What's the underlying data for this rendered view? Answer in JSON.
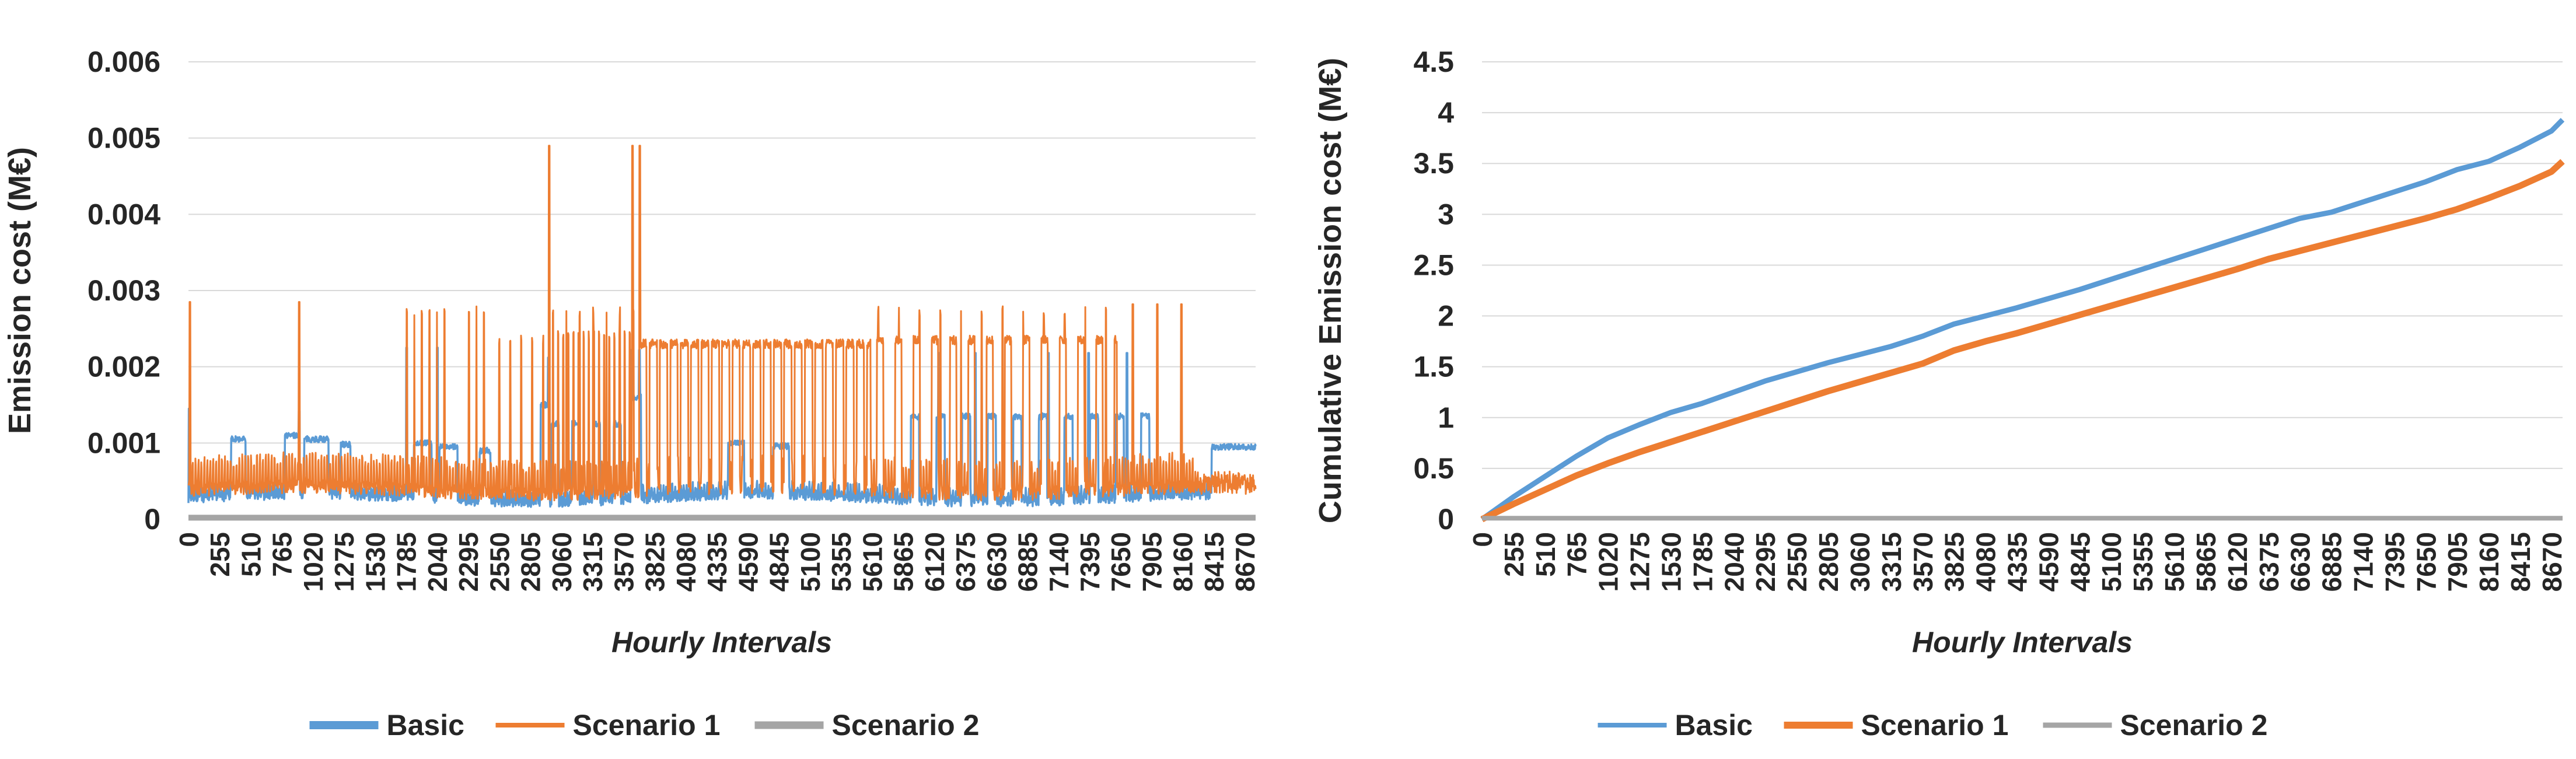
{
  "figure": {
    "background": "#ffffff",
    "gridline_color": "#D9D9D9",
    "axis_line_color": "#BFBFBF",
    "text_color": "#262626"
  },
  "chart_data": [
    {
      "id": "hourly-emission-cost",
      "type": "line",
      "title": "",
      "ylabel": "Emission cost (M€)",
      "xlabel": "Hourly Intervals",
      "ylim": [
        0,
        0.006
      ],
      "xlim": [
        0,
        8760
      ],
      "grid": "horizontal",
      "legend_position": "bottom",
      "y_ticks": [
        "0",
        "0.001",
        "0.002",
        "0.003",
        "0.004",
        "0.005",
        "0.006"
      ],
      "y_tick_values": [
        0,
        0.001,
        0.002,
        0.003,
        0.004,
        0.005,
        0.006
      ],
      "x_ticks": [
        0,
        255,
        510,
        765,
        1020,
        1275,
        1530,
        1785,
        2040,
        2295,
        2550,
        2805,
        3060,
        3315,
        3570,
        3825,
        4080,
        4335,
        4590,
        4845,
        5100,
        5355,
        5610,
        5865,
        6120,
        6375,
        6630,
        6885,
        7140,
        7395,
        7650,
        7905,
        8160,
        8415,
        8670
      ],
      "legend": [
        {
          "label": "Basic",
          "color": "#5B9BD5",
          "marker_thickness": 14
        },
        {
          "label": "Scenario 1",
          "color": "#ED7D31",
          "marker_thickness": 8
        },
        {
          "label": "Scenario 2",
          "color": "#A5A5A5",
          "marker_thickness": 13
        }
      ],
      "series_generated": {
        "seed": 7,
        "step_hours": 3,
        "basic": {
          "name": "Basic",
          "color": "#5B9BD5",
          "stroke": 3.5,
          "base": 0.00028,
          "daily_amp": 0.00013,
          "noise": 7e-05,
          "blocks": [
            [
              350,
              470,
              0.00105
            ],
            [
              790,
              905,
              0.0011
            ],
            [
              950,
              1150,
              0.00105
            ],
            [
              1250,
              1330,
              0.00098
            ],
            [
              1850,
              1995,
              0.001
            ],
            [
              2060,
              2210,
              0.00095
            ],
            [
              2390,
              2480,
              0.0009
            ],
            [
              2890,
              2965,
              0.0015
            ],
            [
              3630,
              3715,
              0.0016
            ],
            [
              4430,
              4560,
              0.001
            ],
            [
              4800,
              4930,
              0.00096
            ],
            [
              8400,
              8760,
              0.00095
            ]
          ],
          "block_trains": [
            [
              2980,
              3660,
              170,
              60,
              0.00125
            ],
            [
              5930,
              7900,
              210,
              70,
              0.00135
            ]
          ],
          "spikes": [
            [
              6,
              0.00145
            ],
            [
              908,
              0.00142
            ],
            [
              1792,
              0.00225
            ],
            [
              2042,
              0.00225
            ],
            [
              2955,
              0.00212
            ],
            [
              3640,
              0.00222
            ],
            [
              3702,
              0.00222
            ],
            [
              6160,
              0.00218
            ],
            [
              6460,
              0.00218
            ],
            [
              7060,
              0.00218
            ],
            [
              7390,
              0.00218
            ],
            [
              7705,
              0.00218
            ]
          ]
        },
        "scenario1": {
          "name": "Scenario 1",
          "color": "#ED7D31",
          "stroke": 3,
          "base": 0.00038,
          "daily_amp": 0.00042,
          "noise": 9e-05,
          "band_trains": [
            [
              3700,
              5600,
              85,
              62,
              0.0023
            ],
            [
              5650,
              7620,
              150,
              55,
              0.00235
            ]
          ],
          "spike_trains": [
            [
              1790,
              2120,
              62,
              0.0028
            ],
            [
              2300,
              2440,
              62,
              0.0028
            ],
            [
              2550,
              2960,
              90,
              0.00242
            ],
            [
              2990,
              3660,
              42,
              0.00247
            ],
            [
              2990,
              3700,
              110,
              0.0028
            ],
            [
              5660,
              7600,
              170,
              0.0028
            ]
          ],
          "spikes": [
            [
              12,
              0.00285
            ],
            [
              908,
              0.00285
            ],
            [
              2960,
              0.0049
            ],
            [
              3645,
              0.0049
            ],
            [
              3705,
              0.0049
            ],
            [
              7752,
              0.00282
            ],
            [
              7952,
              0.00282
            ],
            [
              8152,
              0.00282
            ]
          ],
          "tail": [
            8250,
            8760,
            0.00045,
            0.00012
          ]
        },
        "scenario2": {
          "name": "Scenario 2",
          "color": "#A5A5A5",
          "stroke": 10,
          "value": 2e-05
        }
      }
    },
    {
      "id": "cumulative-emission-cost",
      "type": "line",
      "title": "",
      "ylabel": "Cumulative Emission cost (M€)",
      "xlabel": "Hourly Intervals",
      "ylim": [
        0,
        4.5
      ],
      "xlim": [
        0,
        8760
      ],
      "grid": "horizontal",
      "legend_position": "bottom",
      "y_ticks": [
        "0",
        "0.5",
        "1",
        "1.5",
        "2",
        "2.5",
        "3",
        "3.5",
        "4",
        "4.5"
      ],
      "y_tick_values": [
        0,
        0.5,
        1,
        1.5,
        2,
        2.5,
        3,
        3.5,
        4,
        4.5
      ],
      "x_ticks": [
        0,
        255,
        510,
        765,
        1020,
        1275,
        1530,
        1785,
        2040,
        2295,
        2550,
        2805,
        3060,
        3315,
        3570,
        3825,
        4080,
        4335,
        4590,
        4845,
        5100,
        5355,
        5610,
        5865,
        6120,
        6375,
        6630,
        6885,
        7140,
        7395,
        7650,
        7905,
        8160,
        8415,
        8670
      ],
      "legend": [
        {
          "label": "Basic",
          "color": "#5B9BD5",
          "marker_thickness": 8
        },
        {
          "label": "Scenario 1",
          "color": "#ED7D31",
          "marker_thickness": 12
        },
        {
          "label": "Scenario 2",
          "color": "#A5A5A5",
          "marker_thickness": 9
        }
      ],
      "x": [
        0,
        255,
        510,
        765,
        1020,
        1275,
        1530,
        1785,
        2040,
        2295,
        2550,
        2805,
        3060,
        3315,
        3570,
        3825,
        4080,
        4335,
        4590,
        4845,
        5100,
        5355,
        5610,
        5865,
        6120,
        6375,
        6630,
        6885,
        7140,
        7395,
        7650,
        7905,
        8160,
        8415,
        8670,
        8760
      ],
      "series": [
        {
          "name": "Basic",
          "color": "#5B9BD5",
          "stroke": 9,
          "y": [
            0,
            0.22,
            0.42,
            0.62,
            0.8,
            0.93,
            1.05,
            1.14,
            1.25,
            1.36,
            1.45,
            1.54,
            1.62,
            1.7,
            1.8,
            1.92,
            2.0,
            2.08,
            2.17,
            2.26,
            2.36,
            2.46,
            2.56,
            2.66,
            2.76,
            2.86,
            2.96,
            3.02,
            3.12,
            3.22,
            3.32,
            3.44,
            3.52,
            3.66,
            3.82,
            3.93
          ]
        },
        {
          "name": "Scenario 1",
          "color": "#ED7D31",
          "stroke": 11,
          "y": [
            0,
            0.15,
            0.29,
            0.43,
            0.55,
            0.66,
            0.76,
            0.86,
            0.96,
            1.06,
            1.16,
            1.26,
            1.35,
            1.44,
            1.53,
            1.66,
            1.75,
            1.83,
            1.92,
            2.01,
            2.1,
            2.19,
            2.28,
            2.37,
            2.46,
            2.56,
            2.64,
            2.72,
            2.8,
            2.88,
            2.96,
            3.05,
            3.16,
            3.28,
            3.42,
            3.52
          ]
        },
        {
          "name": "Scenario 2",
          "color": "#A5A5A5",
          "stroke": 8,
          "y": [
            0.01,
            0.01,
            0.01,
            0.01,
            0.01,
            0.01,
            0.01,
            0.01,
            0.01,
            0.01,
            0.01,
            0.01,
            0.01,
            0.01,
            0.01,
            0.01,
            0.01,
            0.01,
            0.01,
            0.01,
            0.01,
            0.01,
            0.01,
            0.01,
            0.01,
            0.01,
            0.01,
            0.01,
            0.01,
            0.01,
            0.01,
            0.01,
            0.01,
            0.01,
            0.01,
            0.01
          ]
        }
      ]
    }
  ]
}
